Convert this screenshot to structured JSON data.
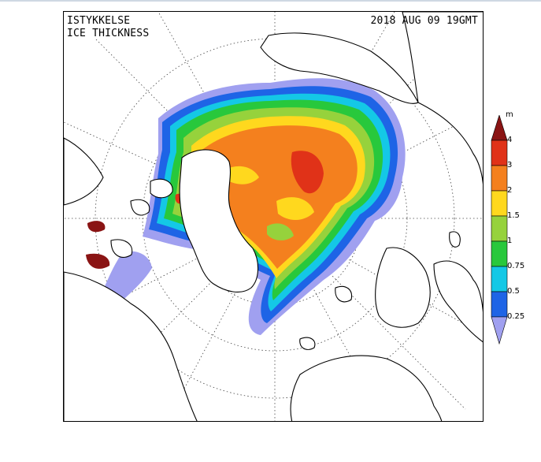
{
  "header": {
    "title_line1": "ISTYKKELSE",
    "title_line2": "ICE THICKNESS",
    "datetime": "2018 AUG 09 19GMT"
  },
  "legend": {
    "unit": "m",
    "labels": [
      "4",
      "3",
      "2",
      "1.5",
      "1",
      "0.75",
      "0.5",
      "0.25"
    ],
    "colors": {
      "above_4": "#8a1414",
      "3_to_4": "#e03218",
      "2_to_3": "#f4801e",
      "1_5_to_2": "#ffd81e",
      "1_to_1_5": "#96d23c",
      "0_75_to_1": "#28c83c",
      "0_5_to_0_75": "#14c8e6",
      "0_25_to_0_5": "#1e64e6",
      "below_0_25": "#a0a0f0"
    }
  }
}
